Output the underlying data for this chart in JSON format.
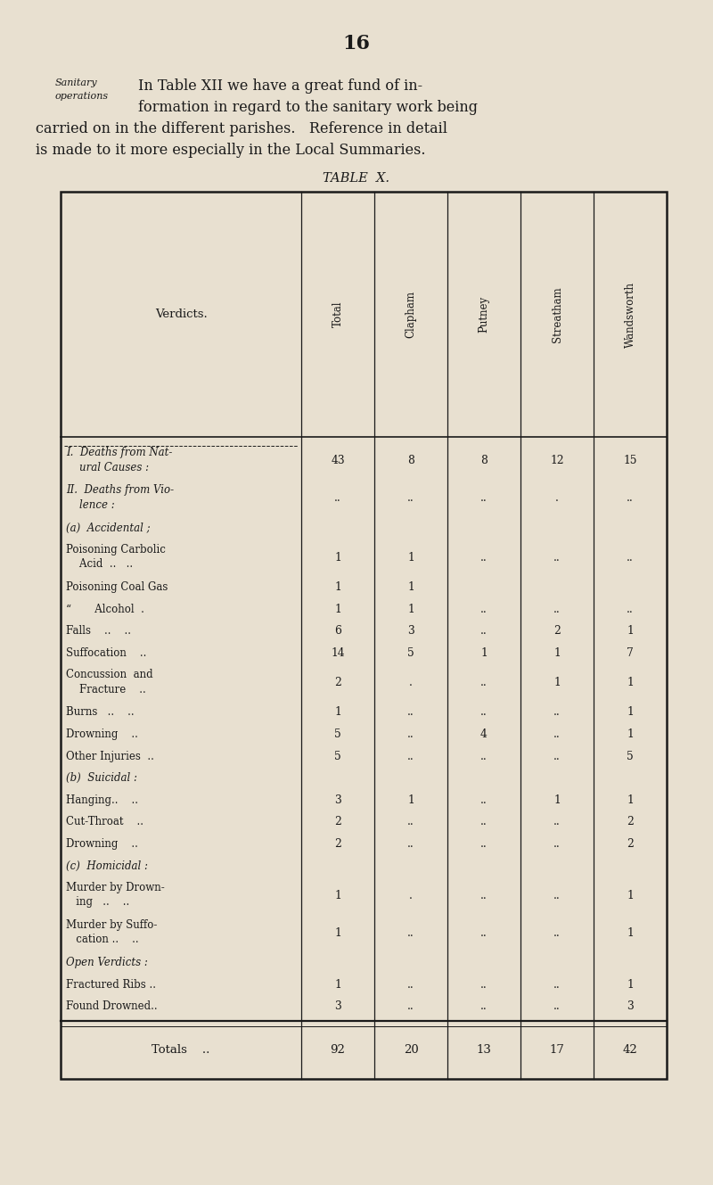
{
  "page_number": "16",
  "bg_color": "#e8e0d0",
  "sidebar_label_line1": "Sanitary",
  "sidebar_label_line2": "operations",
  "intro_line1": "In Table XII we have a great fund of in-",
  "intro_line2": "formation in regard to the sanitary work being",
  "intro_line3": "carried on in the different parishes.   Reference in detail",
  "intro_line4": "is made to it more especially in the Local Summaries.",
  "table_title": "TABLE  X.",
  "col_headers": [
    "Verdicts.",
    "Total",
    "Clapham",
    "Putney",
    "Streatham",
    "Wandsworth"
  ],
  "rows": [
    {
      "label1": "I.  Deaths from Nat-",
      "label2": "    ural Causes :",
      "v0": "43",
      "v1": "8",
      "v2": "8",
      "v3": "12",
      "v4": "15",
      "italic": true,
      "two_line": true
    },
    {
      "label1": "II.  Deaths from Vio-",
      "label2": "    lence :",
      "v0": "..",
      "v1": "..",
      "v2": "..",
      "v3": ".",
      "v4": "..",
      "italic": true,
      "two_line": true
    },
    {
      "label1": "(a)  Accidental ;",
      "label2": "",
      "v0": "",
      "v1": "",
      "v2": "",
      "v3": "",
      "v4": "",
      "italic": true,
      "two_line": false
    },
    {
      "label1": "Poisoning Carbolic",
      "label2": "    Acid  ..   ..",
      "v0": "1",
      "v1": "1",
      "v2": "..",
      "v3": "..",
      "v4": "..",
      "italic": false,
      "two_line": true
    },
    {
      "label1": "Poisoning Coal Gas",
      "label2": "",
      "v0": "1",
      "v1": "1",
      "v2": "",
      "v3": "",
      "v4": "",
      "italic": false,
      "two_line": false
    },
    {
      "label1": "“       Alcohol  .",
      "label2": "",
      "v0": "1",
      "v1": "1",
      "v2": "..",
      "v3": "..",
      "v4": "..",
      "italic": false,
      "two_line": false
    },
    {
      "label1": "Falls    ..    ..",
      "label2": "",
      "v0": "6",
      "v1": "3",
      "v2": "..",
      "v3": "2",
      "v4": "1",
      "italic": false,
      "two_line": false
    },
    {
      "label1": "Suffocation    ..",
      "label2": "",
      "v0": "14",
      "v1": "5",
      "v2": "1",
      "v3": "1",
      "v4": "7",
      "italic": false,
      "two_line": false
    },
    {
      "label1": "Concussion  and",
      "label2": "    Fracture    ..",
      "v0": "2",
      "v1": ".",
      "v2": "..",
      "v3": "1",
      "v4": "1",
      "italic": false,
      "two_line": true
    },
    {
      "label1": "Burns   ..    ..",
      "label2": "",
      "v0": "1",
      "v1": "..",
      "v2": "..",
      "v3": "..",
      "v4": "1",
      "italic": false,
      "two_line": false
    },
    {
      "label1": "Drowning    ..",
      "label2": "",
      "v0": "5",
      "v1": "..",
      "v2": "4",
      "v3": "..",
      "v4": "1",
      "italic": false,
      "two_line": false
    },
    {
      "label1": "Other Injuries  ..",
      "label2": "",
      "v0": "5",
      "v1": "..",
      "v2": "..",
      "v3": "..",
      "v4": "5",
      "italic": false,
      "two_line": false
    },
    {
      "label1": "(b)  Suicidal :",
      "label2": "",
      "v0": "",
      "v1": "",
      "v2": "",
      "v3": "",
      "v4": "",
      "italic": true,
      "two_line": false
    },
    {
      "label1": "Hanging..    ..",
      "label2": "",
      "v0": "3",
      "v1": "1",
      "v2": "..",
      "v3": "1",
      "v4": "1",
      "italic": false,
      "two_line": false
    },
    {
      "label1": "Cut-Throat    ..",
      "label2": "",
      "v0": "2",
      "v1": "..",
      "v2": "..",
      "v3": "..",
      "v4": "2",
      "italic": false,
      "two_line": false
    },
    {
      "label1": "Drowning    ..",
      "label2": "",
      "v0": "2",
      "v1": "..",
      "v2": "..",
      "v3": "..",
      "v4": "2",
      "italic": false,
      "two_line": false
    },
    {
      "label1": "(c)  Homicidal :",
      "label2": "",
      "v0": "",
      "v1": "",
      "v2": "",
      "v3": "",
      "v4": "",
      "italic": true,
      "two_line": false
    },
    {
      "label1": "Murder by Drown-",
      "label2": "   ing   ..    ..",
      "v0": "1",
      "v1": ".",
      "v2": "..",
      "v3": "..",
      "v4": "1",
      "italic": false,
      "two_line": true
    },
    {
      "label1": "Murder by Suffo-",
      "label2": "   cation ..    ..",
      "v0": "1",
      "v1": "..",
      "v2": "..",
      "v3": "..",
      "v4": "1",
      "italic": false,
      "two_line": true
    },
    {
      "label1": "Open Verdicts :",
      "label2": "",
      "v0": "",
      "v1": "",
      "v2": "",
      "v3": "",
      "v4": "",
      "italic": true,
      "two_line": false
    },
    {
      "label1": "Fractured Ribs ..",
      "label2": "",
      "v0": "1",
      "v1": "..",
      "v2": "..",
      "v3": "..",
      "v4": "1",
      "italic": false,
      "two_line": false
    },
    {
      "label1": "Found Drowned..",
      "label2": "",
      "v0": "3",
      "v1": "..",
      "v2": "..",
      "v3": "..",
      "v4": "3",
      "italic": false,
      "two_line": false
    }
  ],
  "totals": [
    "92",
    "20",
    "13",
    "17",
    "42"
  ]
}
